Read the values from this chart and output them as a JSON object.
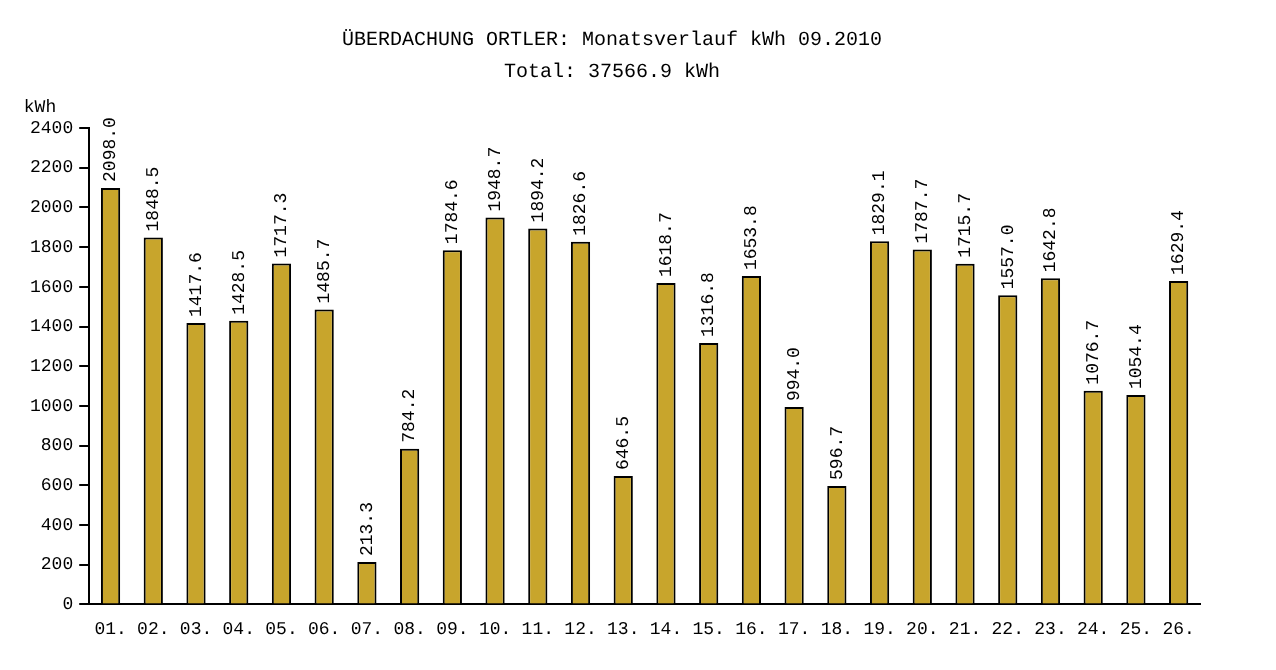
{
  "chart_data": {
    "type": "bar",
    "title": "ÜBERDACHUNG ORTLER: Monatsverlauf kWh 09.2010",
    "subtitle": "Total: 37566.9 kWh",
    "ylabel": "kWh",
    "categories": [
      "01.",
      "02.",
      "03.",
      "04.",
      "05.",
      "06.",
      "07.",
      "08.",
      "09.",
      "10.",
      "11.",
      "12.",
      "13.",
      "14.",
      "15.",
      "16.",
      "17.",
      "18.",
      "19.",
      "20.",
      "21.",
      "22.",
      "23.",
      "24.",
      "25.",
      "26."
    ],
    "values": [
      2098.0,
      1848.5,
      1417.6,
      1428.5,
      1717.3,
      1485.7,
      213.3,
      784.2,
      1784.6,
      1948.7,
      1894.2,
      1826.6,
      646.5,
      1618.7,
      1316.8,
      1653.8,
      994.0,
      596.7,
      1829.1,
      1787.7,
      1715.7,
      1557.0,
      1642.8,
      1076.7,
      1054.4,
      1629.4
    ],
    "value_labels": [
      "2098.0",
      "1848.5",
      "1417.6",
      "1428.5",
      "1717.3",
      "1485.7",
      "213.3",
      "784.2",
      "1784.6",
      "1948.7",
      "1894.2",
      "1826.6",
      "646.5",
      "1618.7",
      "1316.8",
      "1653.8",
      "994.0",
      "596.7",
      "1829.1",
      "1787.7",
      "1715.7",
      "1557.0",
      "1642.8",
      "1076.7",
      "1054.4",
      "1629.4"
    ],
    "color": "#c8a52c",
    "ylim": [
      0,
      2400
    ],
    "yticks": [
      0,
      200,
      400,
      600,
      800,
      1000,
      1200,
      1400,
      1600,
      1800,
      2000,
      2200,
      2400
    ],
    "grid": false,
    "legend": false
  }
}
